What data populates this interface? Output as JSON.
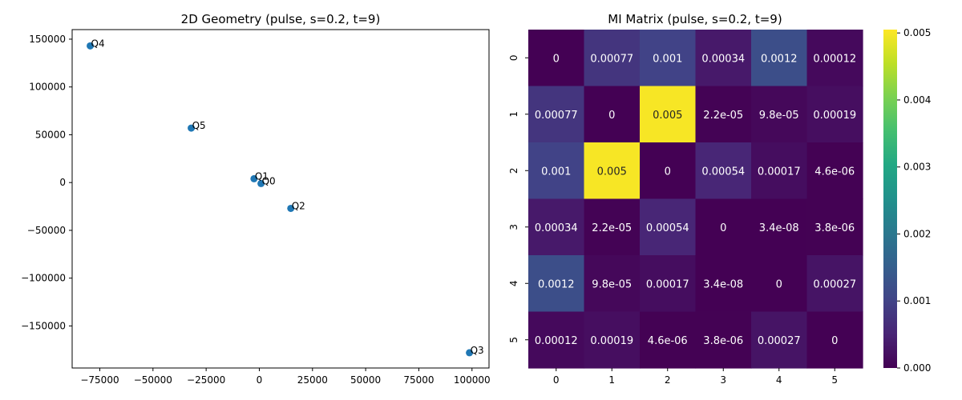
{
  "chart_data": [
    {
      "type": "scatter",
      "title": "2D Geometry (pulse, s=0.2, t=9)",
      "xlabel": "",
      "ylabel": "",
      "xlim": [
        -88000,
        108000
      ],
      "ylim": [
        -194000,
        160000
      ],
      "x_ticks": [
        -75000,
        -50000,
        -25000,
        0,
        25000,
        50000,
        75000,
        100000
      ],
      "y_ticks": [
        150000,
        100000,
        50000,
        0,
        -50000,
        -100000,
        -150000
      ],
      "x_tick_labels": [
        "−75000",
        "−50000",
        "−25000",
        "0",
        "25000",
        "50000",
        "75000",
        "100000"
      ],
      "y_tick_labels": [
        "150000",
        "100000",
        "50000",
        "0",
        "−50000",
        "−100000",
        "−150000"
      ],
      "grid": false,
      "point_color": "#1f77b4",
      "points": [
        {
          "label": "Q0",
          "x": 800,
          "y": -1000
        },
        {
          "label": "Q1",
          "x": -2500,
          "y": 4000
        },
        {
          "label": "Q2",
          "x": 14800,
          "y": -27000
        },
        {
          "label": "Q3",
          "x": 98800,
          "y": -178000
        },
        {
          "label": "Q4",
          "x": -79500,
          "y": 143000
        },
        {
          "label": "Q5",
          "x": -32000,
          "y": 57000
        }
      ]
    },
    {
      "type": "heatmap",
      "title": "MI Matrix (pulse, s=0.2, t=9)",
      "row_labels": [
        "0",
        "1",
        "2",
        "3",
        "4",
        "5"
      ],
      "col_labels": [
        "0",
        "1",
        "2",
        "3",
        "4",
        "5"
      ],
      "values": [
        [
          0,
          0.00077,
          0.001,
          0.00034,
          0.0012,
          0.00012
        ],
        [
          0.00077,
          0,
          0.005,
          2.2e-05,
          9.8e-05,
          0.00019
        ],
        [
          0.001,
          0.005,
          0,
          0.00054,
          0.00017,
          4.6e-06
        ],
        [
          0.00034,
          2.2e-05,
          0.00054,
          0,
          3.4e-08,
          3.8e-06
        ],
        [
          0.0012,
          9.8e-05,
          0.00017,
          3.4e-08,
          0,
          0.00027
        ],
        [
          0.00012,
          0.00019,
          4.6e-06,
          3.8e-06,
          0.00027,
          0
        ]
      ],
      "annotations": [
        [
          "0",
          "0.00077",
          "0.001",
          "0.00034",
          "0.0012",
          "0.00012"
        ],
        [
          "0.00077",
          "0",
          "0.005",
          "2.2e-05",
          "9.8e-05",
          "0.00019"
        ],
        [
          "0.001",
          "0.005",
          "0",
          "0.00054",
          "0.00017",
          "4.6e-06"
        ],
        [
          "0.00034",
          "2.2e-05",
          "0.00054",
          "0",
          "3.4e-08",
          "3.8e-06"
        ],
        [
          "0.0012",
          "9.8e-05",
          "0.00017",
          "3.4e-08",
          "0",
          "0.00027"
        ],
        [
          "0.00012",
          "0.00019",
          "4.6e-06",
          "3.8e-06",
          "0.00027",
          "0"
        ]
      ],
      "colormap": "viridis",
      "vmin": 0,
      "vmax": 0.00505,
      "colorbar_ticks": [
        0,
        0.001,
        0.002,
        0.003,
        0.004,
        0.005
      ],
      "colorbar_tick_labels": [
        "0.000",
        "0.001",
        "0.002",
        "0.003",
        "0.004",
        "0.005"
      ]
    }
  ]
}
